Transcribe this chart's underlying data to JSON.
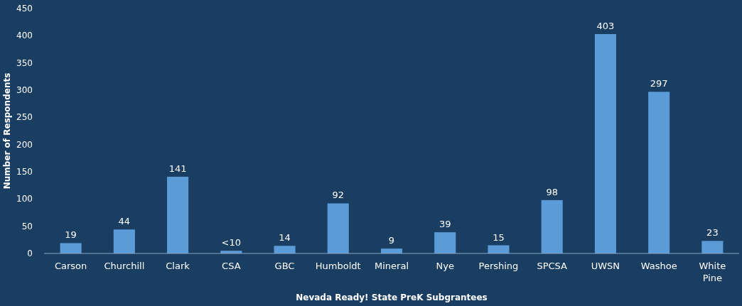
{
  "chart_data": {
    "type": "bar",
    "xlabel": "Nevada Ready! State PreK Subgrantees",
    "ylabel": "Number of Respondents",
    "categories": [
      "Carson",
      "Churchill",
      "Clark",
      "CSA",
      "GBC",
      "Humboldt",
      "Mineral",
      "Nye",
      "Pershing",
      "SPCSA",
      "UWSN",
      "Washoe",
      "White Pine"
    ],
    "values": [
      19,
      44,
      141,
      5,
      14,
      92,
      9,
      39,
      15,
      98,
      403,
      297,
      23
    ],
    "value_labels": [
      "19",
      "44",
      "141",
      "<10",
      "14",
      "92",
      "9",
      "39",
      "15",
      "98",
      "403",
      "297",
      "23"
    ],
    "color": "#5b9bd8",
    "ylim": [
      0,
      450
    ],
    "yticks": [
      0,
      50,
      100,
      150,
      200,
      250,
      300,
      350,
      400,
      450
    ],
    "grid": false
  }
}
